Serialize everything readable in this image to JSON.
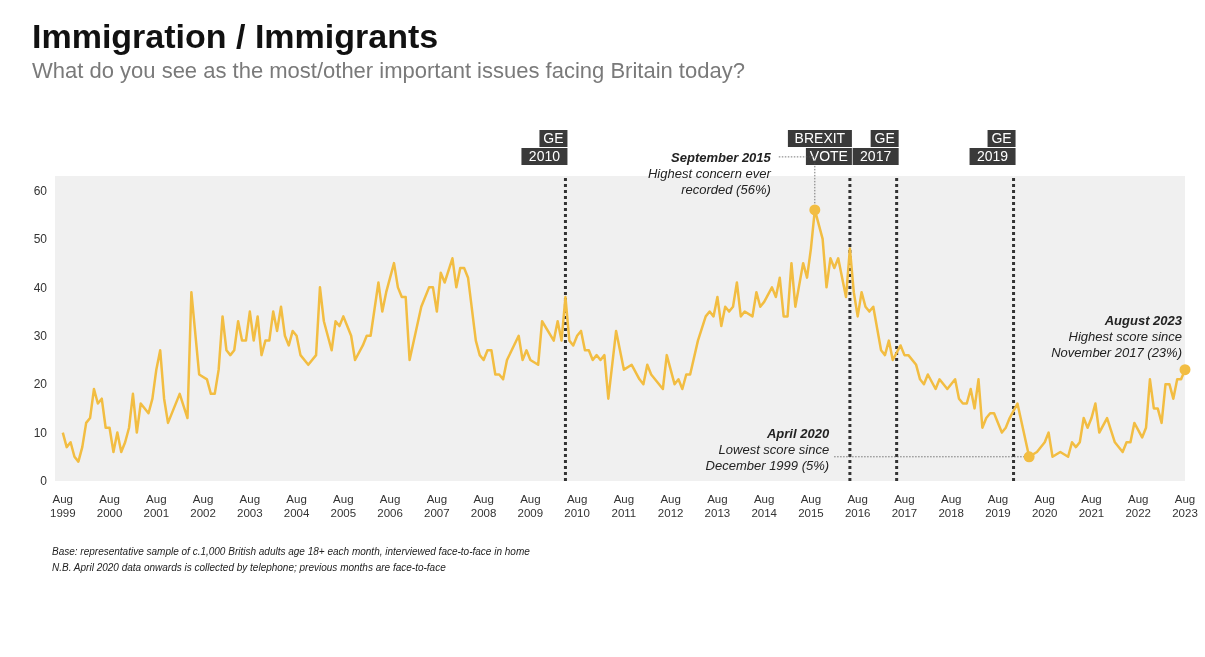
{
  "chart_data": {
    "type": "line",
    "title": "Immigration / Immigrants",
    "subtitle": "What do you see as the most/other important issues facing Britain today?",
    "x": [
      "1999-08",
      "1999-09",
      "1999-10",
      "1999-11",
      "1999-12",
      "2000-01",
      "2000-02",
      "2000-03",
      "2000-04",
      "2000-05",
      "2000-06",
      "2000-07",
      "2000-08",
      "2000-09",
      "2000-10",
      "2000-11",
      "2000-12",
      "2001-01",
      "2001-02",
      "2001-03",
      "2001-04",
      "2001-06",
      "2001-07",
      "2001-08",
      "2001-09",
      "2001-10",
      "2001-11",
      "2002-02",
      "2002-04",
      "2002-05",
      "2002-07",
      "2002-09",
      "2002-10",
      "2002-11",
      "2002-12",
      "2003-01",
      "2003-02",
      "2003-03",
      "2003-04",
      "2003-05",
      "2003-06",
      "2003-07",
      "2003-08",
      "2003-09",
      "2003-10",
      "2003-11",
      "2003-12",
      "2004-01",
      "2004-02",
      "2004-03",
      "2004-04",
      "2004-05",
      "2004-06",
      "2004-07",
      "2004-08",
      "2004-09",
      "2004-11",
      "2005-01",
      "2005-02",
      "2005-03",
      "2005-04",
      "2005-05",
      "2005-06",
      "2005-07",
      "2005-08",
      "2005-09",
      "2005-10",
      "2005-11",
      "2006-01",
      "2006-02",
      "2006-03",
      "2006-05",
      "2006-06",
      "2006-07",
      "2006-09",
      "2006-10",
      "2006-11",
      "2006-12",
      "2007-01",
      "2007-04",
      "2007-06",
      "2007-07",
      "2007-08",
      "2007-09",
      "2007-10",
      "2007-12",
      "2008-01",
      "2008-02",
      "2008-03",
      "2008-04",
      "2008-06",
      "2008-07",
      "2008-08",
      "2008-09",
      "2008-10",
      "2008-11",
      "2008-12",
      "2009-01",
      "2009-02",
      "2009-05",
      "2009-06",
      "2009-07",
      "2009-08",
      "2009-10",
      "2009-11",
      "2010-02",
      "2010-03",
      "2010-04",
      "2010-05",
      "2010-06",
      "2010-07",
      "2010-08",
      "2010-09",
      "2010-10",
      "2010-11",
      "2010-12",
      "2011-01",
      "2011-02",
      "2011-03",
      "2011-04",
      "2011-06",
      "2011-08",
      "2011-10",
      "2011-12",
      "2012-01",
      "2012-02",
      "2012-03",
      "2012-06",
      "2012-07",
      "2012-09",
      "2012-10",
      "2012-11",
      "2012-12",
      "2013-01",
      "2013-03",
      "2013-05",
      "2013-06",
      "2013-07",
      "2013-08",
      "2013-09",
      "2013-10",
      "2013-11",
      "2013-12",
      "2014-01",
      "2014-02",
      "2014-03",
      "2014-05",
      "2014-06",
      "2014-07",
      "2014-08",
      "2014-10",
      "2014-11",
      "2014-12",
      "2015-01",
      "2015-02",
      "2015-03",
      "2015-04",
      "2015-06",
      "2015-07",
      "2015-08",
      "2015-09",
      "2015-11",
      "2015-12",
      "2016-01",
      "2016-02",
      "2016-03",
      "2016-05",
      "2016-06",
      "2016-07",
      "2016-08",
      "2016-09",
      "2016-10",
      "2016-11",
      "2016-12",
      "2017-02",
      "2017-03",
      "2017-04",
      "2017-05",
      "2017-07",
      "2017-08",
      "2017-09",
      "2017-11",
      "2017-12",
      "2018-01",
      "2018-02",
      "2018-04",
      "2018-05",
      "2018-07",
      "2018-09",
      "2018-10",
      "2018-11",
      "2018-12",
      "2019-01",
      "2019-02",
      "2019-03",
      "2019-04",
      "2019-05",
      "2019-06",
      "2019-07",
      "2019-09",
      "2019-10",
      "2019-11",
      "2020-01",
      "2020-04",
      "2020-06",
      "2020-08",
      "2020-09",
      "2020-10",
      "2020-12",
      "2021-02",
      "2021-03",
      "2021-04",
      "2021-05",
      "2021-06",
      "2021-07",
      "2021-08",
      "2021-09",
      "2021-10",
      "2021-12",
      "2022-02",
      "2022-04",
      "2022-05",
      "2022-06",
      "2022-07",
      "2022-09",
      "2022-10",
      "2022-11",
      "2022-12",
      "2023-01",
      "2023-02",
      "2023-03",
      "2023-04",
      "2023-05",
      "2023-06",
      "2023-07",
      "2023-08"
    ],
    "series": [
      {
        "color": "#f2bd42",
        "values": [
          10,
          7,
          8,
          5,
          4,
          7,
          12,
          13,
          19,
          16,
          17,
          11,
          11,
          6,
          10,
          6,
          8,
          11,
          18,
          10,
          16,
          14,
          17,
          23,
          27,
          17,
          12,
          18,
          13,
          39,
          22,
          21,
          18,
          18,
          23,
          34,
          27,
          26,
          27,
          33,
          29,
          29,
          35,
          29,
          34,
          26,
          29,
          29,
          35,
          31,
          36,
          30,
          28,
          31,
          30,
          26,
          24,
          26,
          40,
          33,
          30,
          27,
          33,
          32,
          34,
          32,
          30,
          25,
          28,
          30,
          30,
          41,
          35,
          39,
          45,
          40,
          38,
          38,
          25,
          36,
          40,
          40,
          35,
          43,
          41,
          46,
          40,
          44,
          44,
          42,
          29,
          26,
          25,
          27,
          27,
          22,
          22,
          21,
          25,
          30,
          25,
          27,
          25,
          24,
          33,
          29,
          33,
          29,
          38,
          29,
          28,
          30,
          31,
          27,
          27,
          25,
          26,
          25,
          26,
          17,
          31,
          23,
          24,
          21,
          20,
          24,
          22,
          19,
          26,
          20,
          21,
          19,
          22,
          22,
          29,
          34,
          35,
          34,
          38,
          32,
          36,
          35,
          36,
          41,
          34,
          35,
          34,
          39,
          36,
          37,
          40,
          38,
          42,
          34,
          34,
          45,
          36,
          45,
          42,
          48,
          56,
          50,
          40,
          46,
          44,
          46,
          38,
          48,
          39,
          34,
          39,
          36,
          35,
          36,
          27,
          26,
          29,
          25,
          28,
          26,
          26,
          24,
          21,
          20,
          22,
          19,
          21,
          19,
          21,
          17,
          16,
          16,
          19,
          15,
          21,
          11,
          13,
          14,
          14,
          10,
          11,
          13,
          16,
          5,
          6,
          8,
          10,
          5,
          6,
          5,
          8,
          7,
          8,
          13,
          11,
          13,
          16,
          10,
          13,
          8,
          6,
          8,
          8,
          12,
          9,
          11,
          21,
          15,
          15,
          12,
          20,
          20,
          17,
          21,
          21,
          23
        ]
      }
    ],
    "marker": "none",
    "line_style": "solid",
    "xlim": [
      "1999-06",
      "2023-08"
    ],
    "xticks": [
      {
        "value": "1999-08",
        "label": "Aug 1999"
      },
      {
        "value": "2000-08",
        "label": "Aug 2000"
      },
      {
        "value": "2001-08",
        "label": "Aug 2001"
      },
      {
        "value": "2002-08",
        "label": "Aug 2002"
      },
      {
        "value": "2003-08",
        "label": "Aug 2003"
      },
      {
        "value": "2004-08",
        "label": "Aug 2004"
      },
      {
        "value": "2005-08",
        "label": "Aug 2005"
      },
      {
        "value": "2006-08",
        "label": "Aug 2006"
      },
      {
        "value": "2007-08",
        "label": "Aug 2007"
      },
      {
        "value": "2008-08",
        "label": "Aug 2008"
      },
      {
        "value": "2009-08",
        "label": "Aug 2009"
      },
      {
        "value": "2010-08",
        "label": "Aug 2010"
      },
      {
        "value": "2011-08",
        "label": "Aug 2011"
      },
      {
        "value": "2012-08",
        "label": "Aug 2012"
      },
      {
        "value": "2013-08",
        "label": "Aug 2013"
      },
      {
        "value": "2014-08",
        "label": "Aug 2014"
      },
      {
        "value": "2015-08",
        "label": "Aug 2015"
      },
      {
        "value": "2016-08",
        "label": "Aug 2016"
      },
      {
        "value": "2017-08",
        "label": "Aug 2017"
      },
      {
        "value": "2018-08",
        "label": "Aug 2018"
      },
      {
        "value": "2019-08",
        "label": "Aug 2019"
      },
      {
        "value": "2020-08",
        "label": "Aug 2020"
      },
      {
        "value": "2021-08",
        "label": "Aug 2021"
      },
      {
        "value": "2022-08",
        "label": "Aug 2022"
      },
      {
        "value": "2023-08",
        "label": "Aug 2023"
      }
    ],
    "ylim": [
      0,
      63
    ],
    "yticks": [
      0,
      10,
      20,
      30,
      40,
      50,
      60
    ],
    "ref_lines": [
      {
        "axis": "x",
        "value": "2010-05",
        "label": "GE 2010",
        "color": "#333333",
        "line_style": "dotted"
      },
      {
        "axis": "x",
        "value": "2016-06",
        "label": "BREXIT VOTE",
        "color": "#333333",
        "line_style": "dotted"
      },
      {
        "axis": "x",
        "value": "2017-06",
        "label": "GE 2017",
        "color": "#333333",
        "line_style": "dotted"
      },
      {
        "axis": "x",
        "value": "2019-12",
        "label": "GE 2019",
        "color": "#333333",
        "line_style": "dotted"
      }
    ],
    "annotations": [
      {
        "text": "September 2015\nHighest concern ever\nrecorded (56%)",
        "x": "2015-09",
        "y": 56
      },
      {
        "text": "April 2020\nLowest score since\nDecember 1999 (5%)",
        "x": "2020-04",
        "y": 5
      },
      {
        "text": "August 2023\nHighest score since\nNovember 2017 (23%)",
        "x": "2023-08",
        "y": 23
      },
      "Base: representative sample of c.1,000 British adults age 18+ each month, interviewed face-to-face in home",
      "N.B. April 2020 data onwards is collected by telephone; previous months are face-to-face"
    ]
  }
}
